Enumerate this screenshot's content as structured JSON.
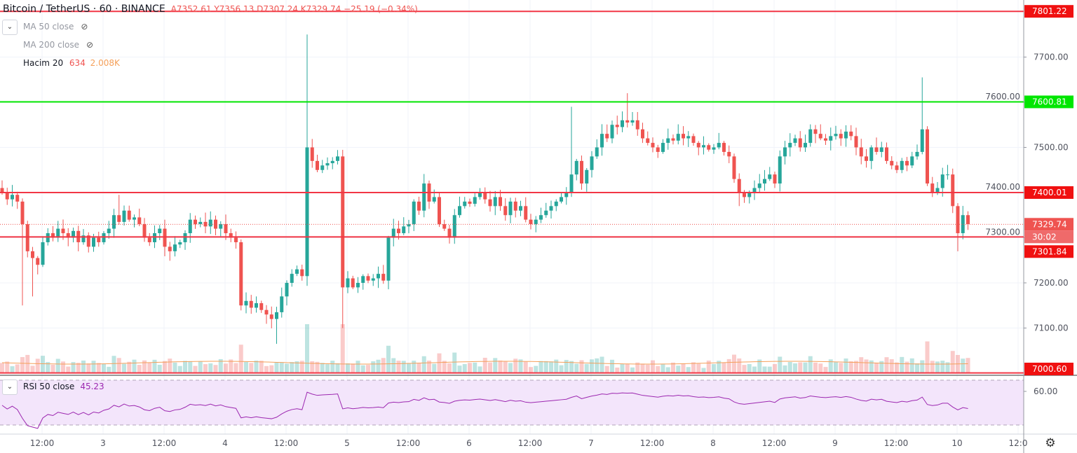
{
  "header": {
    "symbol": "Bitcoin / TetherUS · 60 · BINANCE",
    "ohlc": "A7352.61  Y7356.13  D7307.24  K7329.74  −25.19 (−0.34%)"
  },
  "indicators": [
    {
      "label": "MA 50 close",
      "icon": "eye-off-icon"
    },
    {
      "label": "MA 200 close",
      "icon": "eye-off-icon"
    },
    {
      "label": "Hacim 20",
      "v1": "634",
      "v2": "2.008K"
    }
  ],
  "rsi": {
    "label": "RSI 50 close",
    "value": "45.23"
  },
  "colors": {
    "up": "#26a69a",
    "down": "#ef5350",
    "line_red": "#f23645",
    "line_green": "#00e600",
    "rsi": "#9c27b0"
  },
  "chart_data": {
    "type": "candlestick",
    "title": "Bitcoin / TetherUS · 60 · BINANCE",
    "ylim": [
      7000,
      7800
    ],
    "y_ticks": [
      "7700.00",
      "7600.00",
      "7500.00",
      "7400.00",
      "7300.00",
      "7200.00",
      "7100.00"
    ],
    "x_ticks": [
      "12:00",
      "3",
      "12:00",
      "4",
      "12:00",
      "5",
      "12:00",
      "6",
      "12:00",
      "7",
      "12:00",
      "8",
      "12:00",
      "9",
      "12:00",
      "10",
      "12:0"
    ],
    "first_open": 7410,
    "closes": [
      7400,
      7385,
      7395,
      7380,
      7330,
      7270,
      7255,
      7240,
      7290,
      7310,
      7300,
      7320,
      7310,
      7300,
      7315,
      7290,
      7305,
      7280,
      7300,
      7290,
      7310,
      7320,
      7350,
      7335,
      7360,
      7340,
      7345,
      7330,
      7300,
      7290,
      7310,
      7320,
      7280,
      7270,
      7285,
      7290,
      7310,
      7340,
      7330,
      7335,
      7325,
      7340,
      7320,
      7330,
      7310,
      7300,
      7290,
      7150,
      7160,
      7145,
      7155,
      7140,
      7130,
      7120,
      7135,
      7170,
      7200,
      7220,
      7230,
      7215,
      7500,
      7470,
      7450,
      7460,
      7465,
      7470,
      7480,
      7190,
      7210,
      7190,
      7200,
      7215,
      7205,
      7210,
      7220,
      7205,
      7300,
      7320,
      7310,
      7325,
      7330,
      7380,
      7360,
      7420,
      7380,
      7390,
      7330,
      7320,
      7300,
      7350,
      7370,
      7380,
      7375,
      7390,
      7400,
      7385,
      7370,
      7390,
      7370,
      7350,
      7380,
      7360,
      7370,
      7340,
      7330,
      7340,
      7350,
      7360,
      7370,
      7380,
      7390,
      7400,
      7440,
      7470,
      7420,
      7450,
      7480,
      7500,
      7530,
      7520,
      7550,
      7545,
      7560,
      7555,
      7560,
      7540,
      7520,
      7510,
      7500,
      7490,
      7510,
      7520,
      7515,
      7530,
      7520,
      7525,
      7510,
      7500,
      7505,
      7495,
      7500,
      7510,
      7490,
      7480,
      7430,
      7400,
      7390,
      7400,
      7410,
      7420,
      7430,
      7440,
      7420,
      7480,
      7500,
      7510,
      7520,
      7500,
      7510,
      7540,
      7530,
      7520,
      7515,
      7525,
      7530,
      7520,
      7535,
      7525,
      7500,
      7480,
      7470,
      7500,
      7490,
      7500,
      7470,
      7460,
      7450,
      7470,
      7460,
      7480,
      7490,
      7540,
      7420,
      7400,
      7410,
      7440,
      7440,
      7370,
      7310,
      7350,
      7330
    ],
    "wick_extremes": {
      "4": {
        "low": 7150
      },
      "6": {
        "low": 7170
      },
      "23": {
        "high": 7395
      },
      "54": {
        "low": 7065
      },
      "60": {
        "high": 7750
      },
      "67": {
        "low": 7100
      },
      "112": {
        "high": 7590
      },
      "123": {
        "high": 7620
      },
      "145": {
        "low": 7370
      },
      "181": {
        "high": 7655
      },
      "188": {
        "low": 7270
      }
    },
    "volume_ma": 634,
    "rsi_period": 50,
    "rsi_band": [
      30,
      70
    ],
    "rsi_tick": "60.00",
    "hlines": [
      {
        "price": 7801.22,
        "label": "7801.22",
        "color": "red"
      },
      {
        "price": 7600.81,
        "label": "7600.81",
        "color": "green"
      },
      {
        "price": 7400.01,
        "label": "7400.01",
        "color": "red"
      },
      {
        "price": 7301.84,
        "label": "7301.84",
        "color": "red"
      },
      {
        "price": 7000.6,
        "label": "7000.60",
        "color": "red"
      }
    ],
    "last_price": {
      "price": 7329.74,
      "label": "7329.74",
      "countdown": "30:02"
    }
  }
}
